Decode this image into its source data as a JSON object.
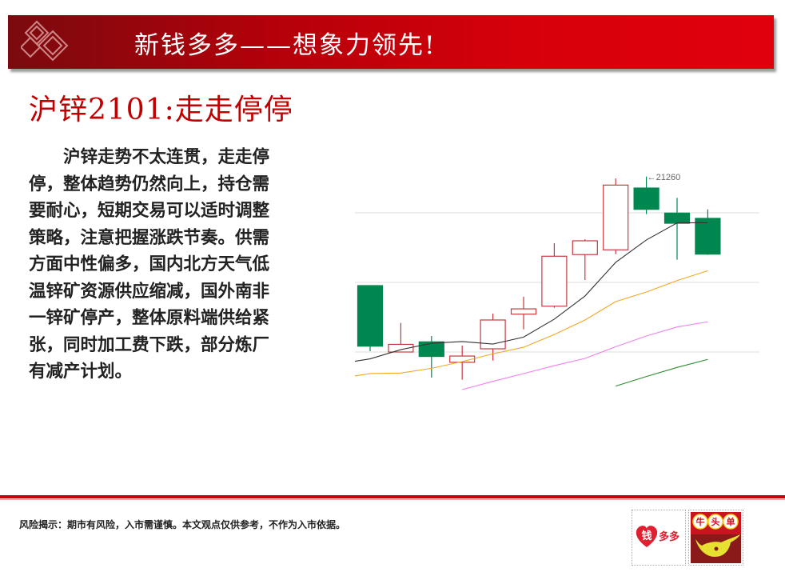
{
  "banner": {
    "title": "新钱多多——想象力领先!"
  },
  "slide": {
    "title": "沪锌2101:走走停停",
    "paragraph_lines": [
      "　　沪锌走势不太连贯，走走停",
      "停，整体趋势仍然向上，持仓需",
      "要耐心，短期交易可以适时调整",
      "策略，注意把握涨跌节奏。供需",
      "方面中性偏多，国内北方天气低",
      "温锌矿资源供应缩减，国外南非",
      "一锌矿停产，整体原料端供给紧",
      "张，同时加工费下跌，部分炼厂",
      "有减产计划。"
    ]
  },
  "footer": {
    "disclaimer": "风险揭示：期市有风险，入市需谨慎。本文观点仅供参考，不作为入市依据。",
    "logo1_text": "钱多多",
    "logo2_text": "牛头单"
  },
  "chart_data": {
    "type": "candlestick",
    "grid": true,
    "gridlines_y": [
      20000,
      20500,
      21000
    ],
    "annotation": "←21260",
    "colors": {
      "up": "#c8393d",
      "down": "#00874f",
      "ma_black": "#333333",
      "ma_orange": "#f5a623",
      "ma_pink": "#ee82ee",
      "ma_green": "#2e8b2e"
    },
    "candles": [
      {
        "open": 20477,
        "high": 20477,
        "low": 20006,
        "close": 20042
      },
      {
        "open": 20000,
        "high": 20209,
        "low": 20000,
        "close": 20055
      },
      {
        "open": 20073,
        "high": 20115,
        "low": 19816,
        "close": 19968
      },
      {
        "open": 19926,
        "high": 20046,
        "low": 19801,
        "close": 19971
      },
      {
        "open": 20023,
        "high": 20276,
        "low": 19939,
        "close": 20230
      },
      {
        "open": 20272,
        "high": 20397,
        "low": 20163,
        "close": 20310
      },
      {
        "open": 20329,
        "high": 20782,
        "low": 20318,
        "close": 20688
      },
      {
        "open": 20700,
        "high": 20810,
        "low": 20517,
        "close": 20799
      },
      {
        "open": 20734,
        "high": 21247,
        "low": 20703,
        "close": 21199
      },
      {
        "open": 21178,
        "high": 21260,
        "low": 20991,
        "close": 21025
      },
      {
        "open": 20998,
        "high": 21107,
        "low": 20663,
        "close": 20925
      },
      {
        "open": 20960,
        "high": 21025,
        "low": 20698,
        "close": 20703
      }
    ],
    "ma_lines": [
      {
        "color": "#333333",
        "values": [
          19951,
          20017,
          20063,
          20075,
          20057,
          20107,
          20236,
          20402,
          20644,
          20805,
          20927,
          20929
        ]
      },
      {
        "color": "#f5a623",
        "values": [
          19845,
          19849,
          19883,
          19931,
          19987,
          20034,
          20126,
          20230,
          20362,
          20431,
          20513,
          20584
        ]
      },
      {
        "color": "#ee82ee",
        "values": [
          null,
          null,
          null,
          19730,
          19789,
          19845,
          19902,
          19954,
          20038,
          20115,
          20180,
          20217
        ]
      },
      {
        "color": "#2e8b2e",
        "values": [
          null,
          null,
          null,
          null,
          null,
          null,
          null,
          null,
          19755,
          19824,
          19889,
          19947
        ]
      }
    ]
  }
}
